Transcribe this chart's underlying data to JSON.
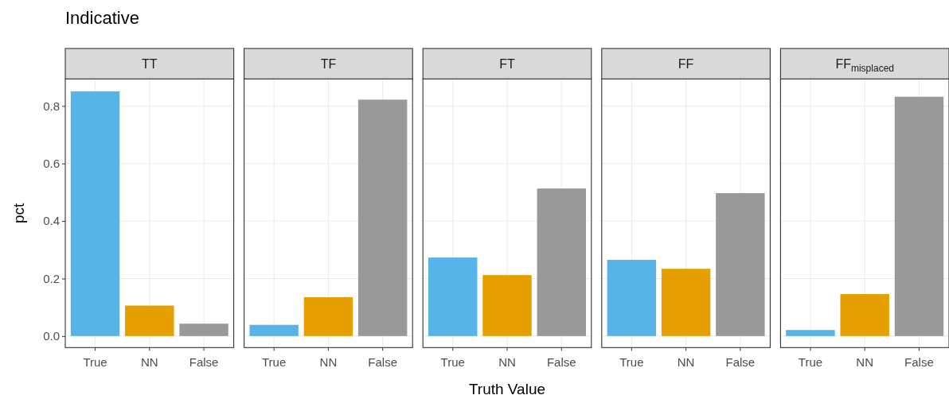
{
  "chart_data": [
    {
      "type": "bar",
      "title": "TT",
      "annotations": [
        "Indicative"
      ],
      "ylabel": "pct",
      "categories": [
        "True",
        "NN",
        "False"
      ],
      "values": [
        0.851,
        0.106,
        0.043
      ],
      "colors": [
        "#56b4e9",
        "#e69f00",
        "#999999"
      ],
      "ylim": [
        -0.04,
        0.894
      ],
      "yticks": [
        {
          "value": 0,
          "label": "0.0"
        },
        {
          "value": 0.2,
          "label": "0.2"
        },
        {
          "value": 0.4,
          "label": "0.4"
        },
        {
          "value": 0.6,
          "label": "0.6"
        },
        {
          "value": 0.8,
          "label": "0.8"
        }
      ],
      "grid": true
    },
    {
      "type": "bar",
      "title": "TF",
      "categories": [
        "True",
        "NN",
        "False"
      ],
      "values": [
        0.039,
        0.135,
        0.822
      ],
      "colors": [
        "#56b4e9",
        "#e69f00",
        "#999999"
      ],
      "ylim": [
        -0.04,
        0.894
      ],
      "yticks": [
        0,
        0.2,
        0.4,
        0.6,
        0.8
      ],
      "grid": true,
      "tick_labels": "x"
    },
    {
      "type": "bar",
      "title": "FT",
      "xlabel": "Truth Value",
      "categories": [
        "True",
        "NN",
        "False"
      ],
      "values": [
        0.273,
        0.212,
        0.513
      ],
      "colors": [
        "#56b4e9",
        "#e69f00",
        "#999999"
      ],
      "ylim": [
        -0.04,
        0.894
      ],
      "yticks": [
        0,
        0.2,
        0.4,
        0.6,
        0.8
      ],
      "grid": true,
      "tick_labels": "x"
    },
    {
      "type": "bar",
      "title": "FF",
      "categories": [
        "True",
        "NN",
        "False"
      ],
      "values": [
        0.265,
        0.234,
        0.497
      ],
      "colors": [
        "#56b4e9",
        "#e69f00",
        "#999999"
      ],
      "ylim": [
        -0.04,
        0.894
      ],
      "yticks": [
        0,
        0.2,
        0.4,
        0.6,
        0.8
      ],
      "grid": true,
      "tick_labels": "x"
    },
    {
      "type": "bar",
      "title": "FF$_{misplaced}$",
      "categories": [
        "True",
        "NN",
        "False"
      ],
      "values": [
        0.021,
        0.146,
        0.832
      ],
      "colors": [
        "#56b4e9",
        "#e69f00",
        "#999999"
      ],
      "ylim": [
        -0.04,
        0.894
      ],
      "yticks": [
        0,
        0.2,
        0.4,
        0.6,
        0.8
      ],
      "grid": true,
      "tick_labels": "x"
    }
  ]
}
